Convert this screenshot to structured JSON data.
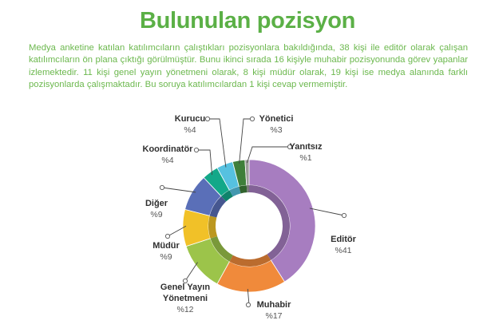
{
  "header": {
    "title": "Bulunulan pozisyon",
    "intro": "Medya anketine katılan katılımcıların çalıştıkları pozisyonlara bakıldığında, 38 kişi ile editör olarak çalışan katılımcıların ön plana çıktığı görülmüştür. Bunu ikinci sırada 16 kişiyle muhabir pozisyonunda görev yapanlar izlemektedir. 11 kişi genel yayın yönetmeni olarak, 8 kişi müdür olarak, 19 kişi ise medya alanında farklı pozisyonlarda çalışmaktadır. Bu soruya katılımcılardan 1 kişi cevap vermemiştir."
  },
  "chart_data": {
    "type": "pie",
    "style": "donut",
    "slices": [
      {
        "label": "Editör",
        "value": 41,
        "pct_label": "%41",
        "color": "#a77dc0"
      },
      {
        "label": "Muhabir",
        "value": 17,
        "pct_label": "%17",
        "color": "#f08a3b"
      },
      {
        "label": "Genel Yayın Yönetmeni",
        "label_lines": [
          "Genel Yayın",
          "Yönetmeni"
        ],
        "value": 12,
        "pct_label": "%12",
        "color": "#9cc44a"
      },
      {
        "label": "Müdür",
        "value": 9,
        "pct_label": "%9",
        "color": "#f1c128"
      },
      {
        "label": "Diğer",
        "value": 9,
        "pct_label": "%9",
        "color": "#5a6fb8"
      },
      {
        "label": "Koordinatör",
        "value": 4,
        "pct_label": "%4",
        "color": "#13a889"
      },
      {
        "label": "Kurucu",
        "value": 4,
        "pct_label": "%4",
        "color": "#56c1e0"
      },
      {
        "label": "Yönetici",
        "value": 3,
        "pct_label": "%3",
        "color": "#3e7f3a"
      },
      {
        "label": "Yanıtsız",
        "value": 1,
        "pct_label": "%1",
        "color": "#9c9c9c"
      }
    ],
    "label_dot_color": "#666666"
  }
}
